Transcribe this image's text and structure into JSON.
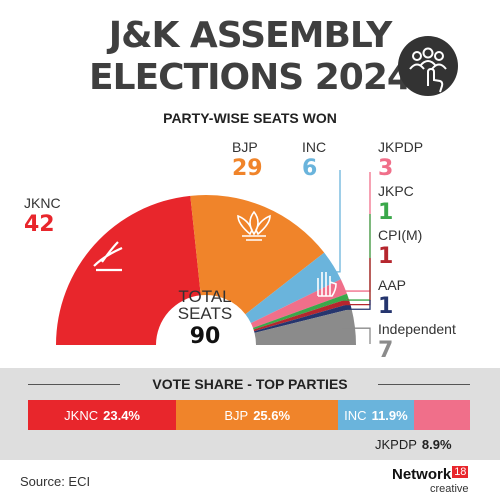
{
  "title": {
    "line1": "J&K ASSEMBLY",
    "line2": "ELECTIONS 2024"
  },
  "subtitle": "PARTY-WISE SEATS WON",
  "total": {
    "label_line1": "TOTAL",
    "label_line2": "SEATS",
    "value": "90"
  },
  "vote_share": {
    "title": "VOTE SHARE - TOP PARTIES",
    "items": [
      {
        "party": "JKNC",
        "share": "23.4%",
        "color": "#e8262c"
      },
      {
        "party": "BJP",
        "share": "25.6%",
        "color": "#f0842a"
      },
      {
        "party": "INC",
        "share": "11.9%",
        "color": "#6ab4dc"
      },
      {
        "party": "JKPDP",
        "share": "8.9%",
        "color": "#f06f8a"
      }
    ]
  },
  "source": "Source: ECI",
  "logo": {
    "brand": "Network",
    "number": "18",
    "sub": "creative"
  },
  "icons": [
    "jknc-plough-icon",
    "bjp-lotus-icon",
    "inc-hand-icon",
    "voting-hand-icon"
  ],
  "chart_data": {
    "type": "pie",
    "shape": "semicircle",
    "title": "PARTY-WISE SEATS WON",
    "total": 90,
    "categories": [
      "JKNC",
      "BJP",
      "INC",
      "JKPDP",
      "JKPC",
      "CPI(M)",
      "AAP",
      "Independent"
    ],
    "values": [
      42,
      29,
      6,
      3,
      1,
      1,
      1,
      7
    ],
    "colors": [
      "#e8262c",
      "#f0842a",
      "#6ab4dc",
      "#f06f8a",
      "#3aa84a",
      "#b5262e",
      "#25356e",
      "#8b8b8b"
    ]
  }
}
